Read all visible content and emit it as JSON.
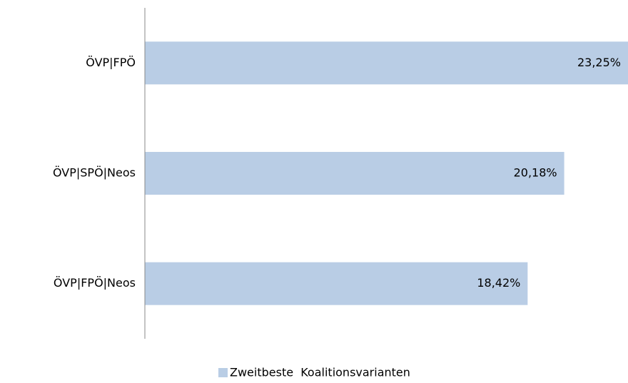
{
  "chart_data": {
    "type": "hbar",
    "categories": [
      "ÖVP|FPÖ",
      "ÖVP|SPÖ|Neos",
      "ÖVP|FPÖ|Neos"
    ],
    "series": [
      {
        "name": "Zweitbeste  Koalitionsvarianten",
        "color": "#b9cde5",
        "values": [
          23.25,
          20.18,
          18.42
        ],
        "value_labels": [
          "23,25%",
          "20,18%",
          "18,42%"
        ]
      }
    ],
    "xlim": [
      0,
      23.25
    ],
    "legend": "bottom"
  }
}
